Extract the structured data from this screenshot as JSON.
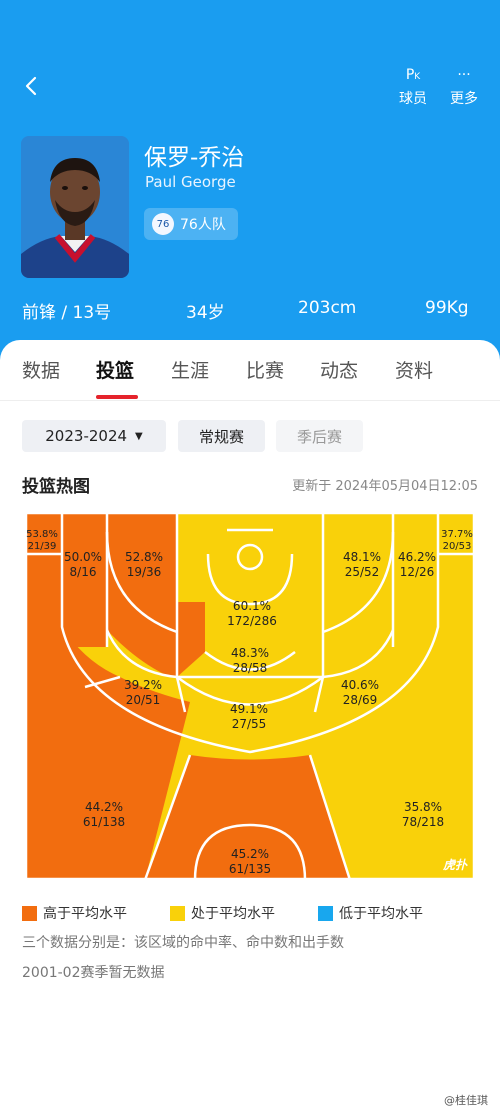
{
  "header": {
    "pk_label": "球员",
    "more_label": "更多",
    "player_name": "保罗-乔治",
    "player_name_en": "Paul George",
    "team": "76人队",
    "position": "前锋 / 13号",
    "age": "34岁",
    "height": "203cm",
    "weight": "99Kg"
  },
  "tabs": [
    "数据",
    "投篮",
    "生涯",
    "比赛",
    "动态",
    "资料"
  ],
  "filters": {
    "season": "2023-2024",
    "regular": "常规赛",
    "playoffs": "季后赛"
  },
  "heatmap": {
    "title": "投篮热图",
    "updated": "更新于 2024年05月04日12:05",
    "zones": [
      {
        "pct": "53.8%",
        "made": "21/39",
        "level": "high"
      },
      {
        "pct": "50.0%",
        "made": "8/16",
        "level": "high"
      },
      {
        "pct": "52.8%",
        "made": "19/36",
        "level": "high"
      },
      {
        "pct": "48.1%",
        "made": "25/52",
        "level": "avg"
      },
      {
        "pct": "46.2%",
        "made": "12/26",
        "level": "avg"
      },
      {
        "pct": "37.7%",
        "made": "20/53",
        "level": "avg"
      },
      {
        "pct": "60.1%",
        "made": "172/286",
        "level": "avg"
      },
      {
        "pct": "48.3%",
        "made": "28/58",
        "level": "avg"
      },
      {
        "pct": "39.2%",
        "made": "20/51",
        "level": "avg"
      },
      {
        "pct": "40.6%",
        "made": "28/69",
        "level": "avg"
      },
      {
        "pct": "49.1%",
        "made": "27/55",
        "level": "avg"
      },
      {
        "pct": "44.2%",
        "made": "61/138",
        "level": "high"
      },
      {
        "pct": "35.8%",
        "made": "78/218",
        "level": "avg"
      },
      {
        "pct": "45.2%",
        "made": "61/135",
        "level": "high"
      }
    ],
    "court_watermark": "虎扑"
  },
  "legend": [
    {
      "label": "高于平均水平",
      "color": "#f26d0f"
    },
    {
      "label": "处于平均水平",
      "color": "#f9d10a"
    },
    {
      "label": "低于平均水平",
      "color": "#18a7ee"
    }
  ],
  "notes": [
    "三个数据分别是：该区域的命中率、命中数和出手数",
    "2001-02赛季暂无数据"
  ],
  "watermark": "@桂佳琪",
  "colors": {
    "header_bg": "#1a9df0",
    "high": "#f26d0f",
    "avg": "#f9d10a",
    "low": "#18a7ee",
    "tab_accent": "#e5232b"
  }
}
